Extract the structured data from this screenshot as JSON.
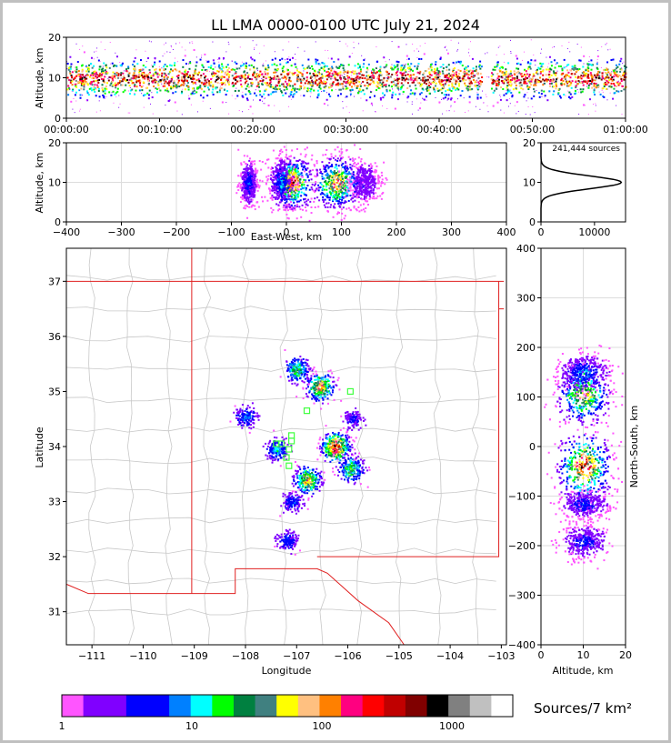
{
  "chart_data": {
    "type": "scatter",
    "title": "LL LMA 0000-0100 UTC July 21, 2024",
    "panels": {
      "time_height": {
        "ylabel": "Altitude, km",
        "ylim": [
          0,
          20
        ],
        "yticks": [
          "0",
          "10",
          "20"
        ],
        "xticks": [
          "00:00:00",
          "00:10:00",
          "00:20:00",
          "00:30:00",
          "00:40:00",
          "00:50:00",
          "01:00:00"
        ],
        "data_gap_minutes": [
          44.5,
          45.5
        ],
        "core_altitude_km": 10
      },
      "ew_height": {
        "xlabel": "East-West, km",
        "ylabel": "Altitude, km",
        "xlim": [
          -400,
          400
        ],
        "ylim": [
          0,
          20
        ],
        "xticks": [
          "-400",
          "-300",
          "-200",
          "-100",
          "0",
          "100",
          "200",
          "300",
          "400"
        ],
        "yticks": [
          "0",
          "10",
          "20"
        ]
      },
      "altitude_histogram": {
        "annotation": "241,444 sources",
        "xticks": [
          "0",
          "10000"
        ],
        "yticks": [
          "0",
          "10",
          "20"
        ],
        "peak_altitude_km": 10,
        "peak_count": 15000
      },
      "plan_view": {
        "xlabel": "Longitude",
        "ylabel": "Latitude",
        "xlim": [
          -111.5,
          -102.9
        ],
        "ylim": [
          30.4,
          37.6
        ],
        "xticks": [
          "-111",
          "-110",
          "-109",
          "-108",
          "-107",
          "-106",
          "-105",
          "-104",
          "-103"
        ],
        "yticks": [
          "31",
          "32",
          "33",
          "34",
          "35",
          "36",
          "37"
        ],
        "stations": [
          [
            -107.1,
            34.1
          ],
          [
            -107.3,
            34.05
          ],
          [
            -107.1,
            34.2
          ],
          [
            -107.4,
            34.05
          ],
          [
            -107.15,
            33.95
          ],
          [
            -107.2,
            33.8
          ],
          [
            -107.15,
            33.65
          ],
          [
            -106.8,
            34.65
          ],
          [
            -105.95,
            35.0
          ]
        ],
        "source_clusters": [
          {
            "lon": -106.25,
            "lat": 34.0,
            "intensity": 1.0
          },
          {
            "lon": -106.55,
            "lat": 35.1,
            "intensity": 0.8
          },
          {
            "lon": -107.0,
            "lat": 35.4,
            "intensity": 0.55
          },
          {
            "lon": -106.8,
            "lat": 33.4,
            "intensity": 0.75
          },
          {
            "lon": -107.4,
            "lat": 33.95,
            "intensity": 0.4
          },
          {
            "lon": -108.0,
            "lat": 34.55,
            "intensity": 0.35
          },
          {
            "lon": -107.1,
            "lat": 33.0,
            "intensity": 0.3
          },
          {
            "lon": -107.2,
            "lat": 32.3,
            "intensity": 0.3
          },
          {
            "lon": -105.95,
            "lat": 33.6,
            "intensity": 0.6
          },
          {
            "lon": -105.9,
            "lat": 34.5,
            "intensity": 0.25
          }
        ]
      },
      "ns_height": {
        "xlabel": "Altitude, km",
        "ylabel": "North-South, km",
        "xlim": [
          0,
          20
        ],
        "ylim": [
          -400,
          400
        ],
        "xticks": [
          "0",
          "10",
          "20"
        ],
        "yticks": [
          "400",
          "300",
          "200",
          "100",
          "0",
          "-100",
          "-200",
          "-300",
          "-400"
        ]
      }
    },
    "colorbar": {
      "label": "Sources/7 km²",
      "ticks": [
        "1",
        "10",
        "100",
        "1000"
      ],
      "colors": [
        "#ff55ff",
        "#8000ff",
        "#8000ff",
        "#0000ff",
        "#0000ff",
        "#0080ff",
        "#00ffff",
        "#00ff00",
        "#008040",
        "#408080",
        "#ffff00",
        "#ffc080",
        "#ff8000",
        "#ff0080",
        "#ff0000",
        "#c00000",
        "#800000",
        "#000000",
        "#808080",
        "#c0c0c0",
        "#ffffff"
      ]
    }
  }
}
